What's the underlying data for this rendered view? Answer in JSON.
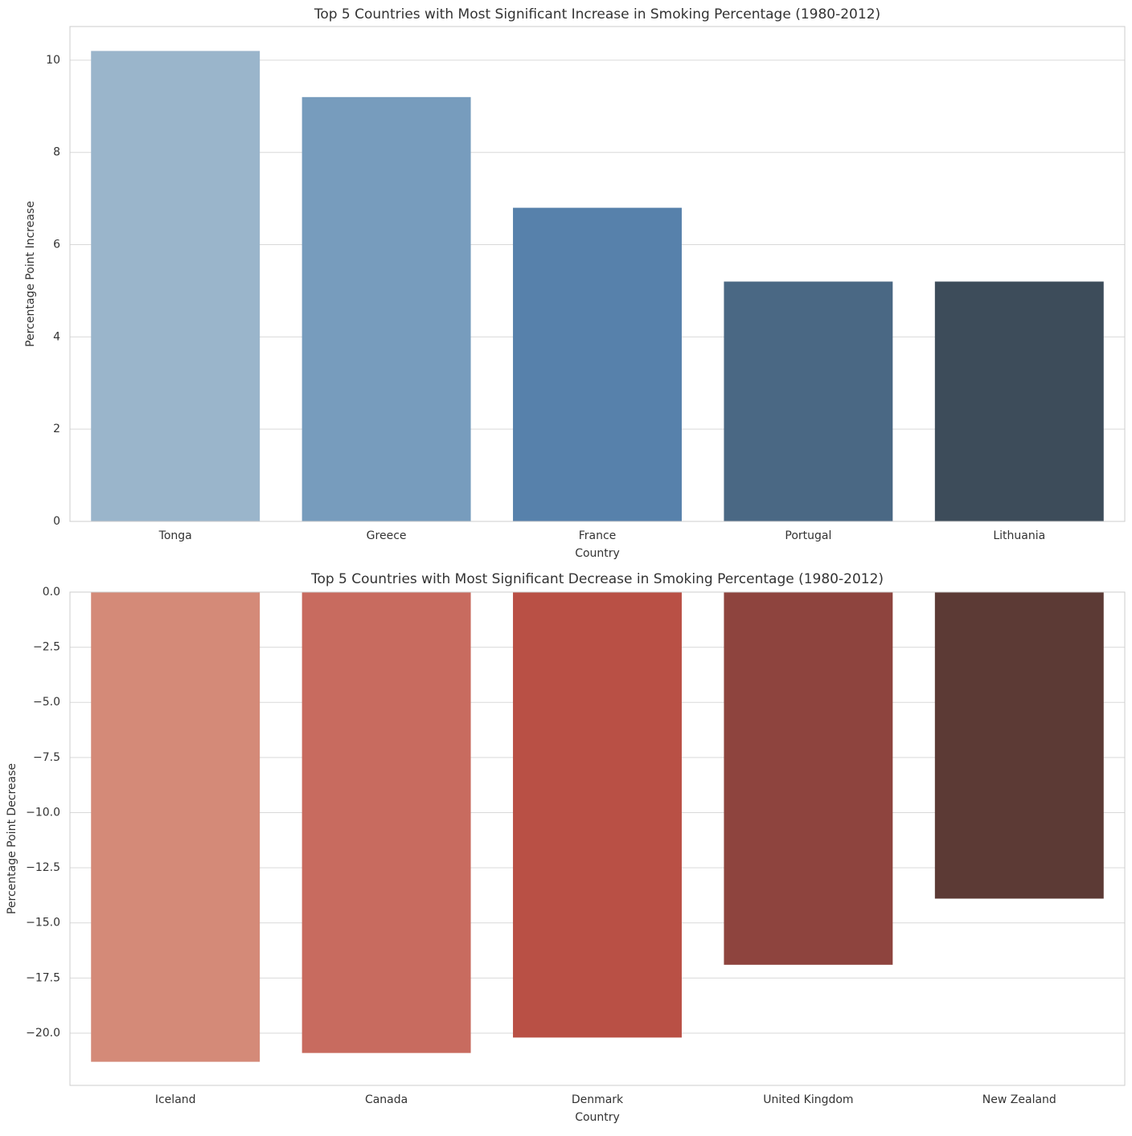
{
  "chart_data": [
    {
      "type": "bar",
      "title": "Top 5 Countries with Most Significant Increase in Smoking Percentage (1980-2012)",
      "x_label": "Country",
      "y_label": "Percentage Point Increase",
      "categories": [
        "Tonga",
        "Greece",
        "France",
        "Portugal",
        "Lithuania"
      ],
      "values": [
        10.2,
        9.2,
        6.8,
        5.2,
        5.2
      ],
      "colors": [
        "#9ab5cb",
        "#779cbd",
        "#5781ab",
        "#4a6884",
        "#3d4c5a"
      ],
      "ylim": [
        0,
        10.73
      ],
      "yticks": [
        0,
        2,
        4,
        6,
        8,
        10
      ],
      "grid": true
    },
    {
      "type": "bar",
      "title": "Top 5 Countries with Most Significant Decrease in Smoking Percentage (1980-2012)",
      "x_label": "Country",
      "y_label": "Percentage Point Decrease",
      "categories": [
        "Iceland",
        "Canada",
        "Denmark",
        "United Kingdom",
        "New Zealand"
      ],
      "values": [
        -21.3,
        -20.9,
        -20.2,
        -16.9,
        -13.9
      ],
      "colors": [
        "#d48a78",
        "#c86b5f",
        "#b95045",
        "#8e443e",
        "#5c3a35"
      ],
      "ylim": [
        -22.37,
        0
      ],
      "yticks": [
        {
          "value": 0,
          "label": "0.0"
        },
        {
          "value": -2.5,
          "label": "−2.5"
        },
        {
          "value": -5,
          "label": "−5.0"
        },
        {
          "value": -7.5,
          "label": "−7.5"
        },
        {
          "value": -10,
          "label": "−10.0"
        },
        {
          "value": -12.5,
          "label": "−12.5"
        },
        {
          "value": -15,
          "label": "−15.0"
        },
        {
          "value": -17.5,
          "label": "−17.5"
        },
        {
          "value": -20,
          "label": "−20.0"
        }
      ],
      "grid": true
    }
  ]
}
